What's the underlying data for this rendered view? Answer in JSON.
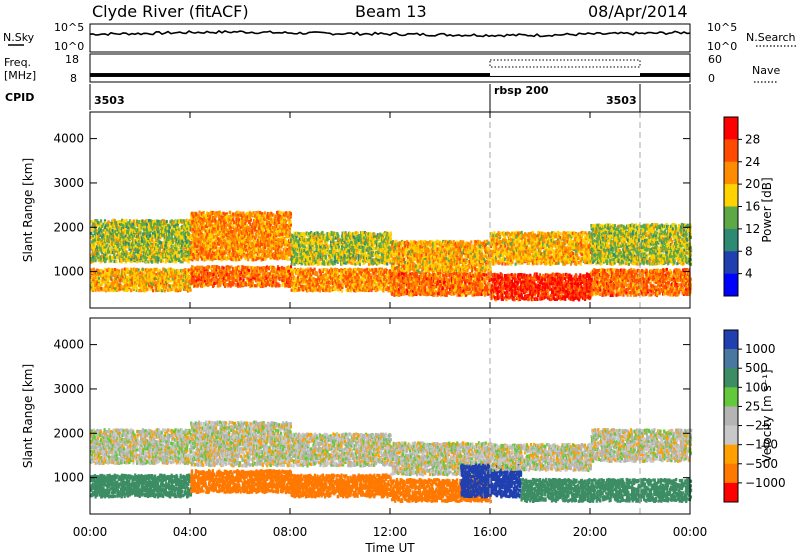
{
  "header": {
    "station": "Clyde River (fitACF)",
    "beam": "Beam 13",
    "date": "08/Apr/2014"
  },
  "housekeeping": {
    "nsky_label": "N.Sky",
    "nsearch_label": "N.Search",
    "noise_ticks": [
      "10^5",
      "10^0"
    ],
    "noise_right_ticks": [
      "10^5",
      "10^0"
    ],
    "freq_label_1": "Freq.",
    "freq_label_2": "[MHz]",
    "freq_ticks": [
      "18",
      "8"
    ],
    "nave_label": "Nave",
    "nave_ticks": [
      "60",
      "0"
    ],
    "cpid_label": "CPID",
    "cpid_segments": [
      {
        "start_hour": 0,
        "end_hour": 16,
        "label": "3503"
      },
      {
        "start_hour": 16,
        "end_hour": 22,
        "label": "rbsp 200"
      },
      {
        "start_hour": 22,
        "end_hour": 24,
        "label": "3503"
      }
    ]
  },
  "power_colorbar": {
    "label": "Power [dB]",
    "ticks": [
      "28",
      "24",
      "20",
      "16",
      "12",
      "8",
      "4"
    ],
    "colors": [
      "#ff0000",
      "#ff4a00",
      "#ff8c00",
      "#ffd200",
      "#5fa848",
      "#2f8a74",
      "#2040b0",
      "#0000ff"
    ]
  },
  "velocity_colorbar": {
    "label": "Velocity [m s⁻¹]",
    "ticks": [
      "1000",
      "500",
      "100",
      "25",
      "−25",
      "−100",
      "−500",
      "−1000"
    ],
    "colors": [
      "#2040b0",
      "#4878a0",
      "#3c8c64",
      "#64c83c",
      "#b4b4b4",
      "#c8c8c8",
      "#ffa000",
      "#ff7800",
      "#ff0000"
    ]
  },
  "chart_data": [
    {
      "type": "line",
      "name": "noise",
      "x_range": [
        0,
        24
      ],
      "y_labels": [
        "10^5",
        "10^0"
      ],
      "x": [
        0,
        2,
        4,
        6,
        8,
        10,
        12,
        14,
        16,
        18,
        20,
        22,
        24
      ],
      "y": [
        3.2,
        3.3,
        3.5,
        3.6,
        3.4,
        3.3,
        3.2,
        3.1,
        3.0,
        3.0,
        3.2,
        3.3,
        3.5
      ]
    },
    {
      "type": "area",
      "name": "frequency",
      "x_range": [
        0,
        24
      ],
      "ylim": [
        8,
        18
      ],
      "x": [
        0,
        16,
        16.05,
        22,
        22.05,
        24
      ],
      "y": [
        10.5,
        10.5,
        10.5,
        10.5,
        10.5,
        10.5
      ]
    },
    {
      "type": "heatmap",
      "name": "power",
      "xlabel": "",
      "ylabel": "Slant Range [km]",
      "x_range": [
        0,
        24
      ],
      "ylim": [
        180,
        4600
      ],
      "x_ticks": [
        "00:00",
        "04:00",
        "08:00",
        "12:00",
        "16:00",
        "20:00",
        "00:00"
      ],
      "y_ticks": [
        1000,
        2000,
        3000,
        4000
      ],
      "bands": [
        {
          "from": 0,
          "to": 4,
          "low_km": 1250,
          "high_km": 2200,
          "level_db": 16
        },
        {
          "from": 0,
          "to": 4,
          "low_km": 600,
          "high_km": 1100,
          "level_db": 20
        },
        {
          "from": 4,
          "to": 8,
          "low_km": 1300,
          "high_km": 2400,
          "level_db": 22
        },
        {
          "from": 4,
          "to": 8,
          "low_km": 700,
          "high_km": 1150,
          "level_db": 24
        },
        {
          "from": 8,
          "to": 12,
          "low_km": 1200,
          "high_km": 1900,
          "level_db": 16
        },
        {
          "from": 8,
          "to": 12,
          "low_km": 600,
          "high_km": 1100,
          "level_db": 22
        },
        {
          "from": 12,
          "to": 16,
          "low_km": 1000,
          "high_km": 1700,
          "level_db": 20
        },
        {
          "from": 12,
          "to": 16,
          "low_km": 500,
          "high_km": 1000,
          "level_db": 24
        },
        {
          "from": 16,
          "to": 20,
          "low_km": 1200,
          "high_km": 1900,
          "level_db": 20
        },
        {
          "from": 16,
          "to": 20,
          "low_km": 400,
          "high_km": 1000,
          "level_db": 28
        },
        {
          "from": 20,
          "to": 24,
          "low_km": 1200,
          "high_km": 2100,
          "level_db": 16
        },
        {
          "from": 20,
          "to": 24,
          "low_km": 500,
          "high_km": 1100,
          "level_db": 24
        }
      ]
    },
    {
      "type": "heatmap",
      "name": "velocity",
      "xlabel": "Time UT",
      "ylabel": "Slant Range [km]",
      "x_range": [
        0,
        24
      ],
      "ylim": [
        180,
        4600
      ],
      "x_ticks": [
        "00:00",
        "04:00",
        "08:00",
        "12:00",
        "16:00",
        "20:00",
        "00:00"
      ],
      "y_ticks": [
        1000,
        2000,
        3000,
        4000
      ],
      "bands": [
        {
          "from": 0,
          "to": 4,
          "low_km": 1350,
          "high_km": 2100,
          "velocity": 0
        },
        {
          "from": 0,
          "to": 4,
          "low_km": 600,
          "high_km": 1100,
          "velocity": 150
        },
        {
          "from": 4,
          "to": 8,
          "low_km": 1300,
          "high_km": 2300,
          "velocity": 0
        },
        {
          "from": 4,
          "to": 8,
          "low_km": 700,
          "high_km": 1200,
          "velocity": -150
        },
        {
          "from": 8,
          "to": 12,
          "low_km": 1300,
          "high_km": 2000,
          "velocity": 0
        },
        {
          "from": 8,
          "to": 12,
          "low_km": 600,
          "high_km": 1100,
          "velocity": -200
        },
        {
          "from": 12,
          "to": 16,
          "low_km": 1100,
          "high_km": 1800,
          "velocity": 0
        },
        {
          "from": 12,
          "to": 16,
          "low_km": 500,
          "high_km": 1000,
          "velocity": -150
        },
        {
          "from": 14.8,
          "to": 17.2,
          "low_km": 600,
          "high_km": 1300,
          "velocity": 800
        },
        {
          "from": 17.2,
          "to": 20,
          "low_km": 500,
          "high_km": 1000,
          "velocity": 150
        },
        {
          "from": 16,
          "to": 20,
          "low_km": 1200,
          "high_km": 1800,
          "velocity": 0
        },
        {
          "from": 20,
          "to": 24,
          "low_km": 1400,
          "high_km": 2100,
          "velocity": 0
        },
        {
          "from": 20,
          "to": 24,
          "low_km": 500,
          "high_km": 1000,
          "velocity": 150
        }
      ]
    }
  ]
}
